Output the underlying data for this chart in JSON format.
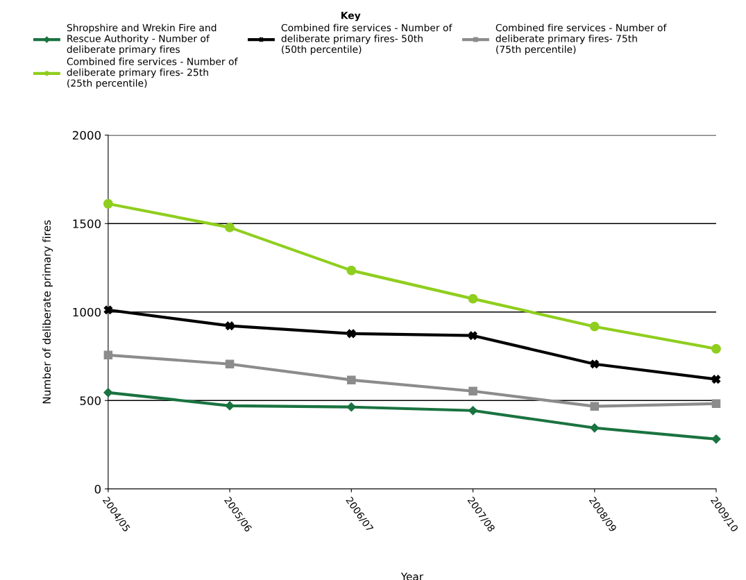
{
  "chart_data": {
    "type": "line",
    "legend_title": "Key",
    "xlabel": "Year",
    "ylabel": "Number of deliberate primary fires",
    "categories": [
      "2004/05",
      "2005/06",
      "2006/07",
      "2007/08",
      "2008/09",
      "2009/10"
    ],
    "series": [
      {
        "name": "Shropshire and Wrekin Fire and Rescue Authority - Number of deliberate primary fires",
        "color": "#1a7340",
        "marker": "diamond",
        "values": [
          545,
          470,
          463,
          443,
          345,
          282
        ]
      },
      {
        "name": "Combined fire services - Number of deliberate primary fires- 50th (50th percentile)",
        "color": "#000000",
        "marker": "cross",
        "values": [
          1012,
          922,
          878,
          867,
          706,
          620
        ]
      },
      {
        "name": "Combined fire services - Number of deliberate primary fires- 75th (75th percentile)",
        "color": "#8c8c8c",
        "marker": "square",
        "values": [
          757,
          706,
          616,
          553,
          467,
          482
        ]
      },
      {
        "name": "Combined fire services - Number of deliberate primary fires- 25th (25th percentile)",
        "color": "#8fce1e",
        "marker": "circle",
        "values": [
          1612,
          1478,
          1235,
          1075,
          918,
          792
        ]
      }
    ],
    "ylim": [
      0,
      2000
    ],
    "yticks": [
      0,
      500,
      1000,
      1500,
      2000
    ],
    "grid": "y",
    "legend": "top",
    "line_style": "solid"
  }
}
